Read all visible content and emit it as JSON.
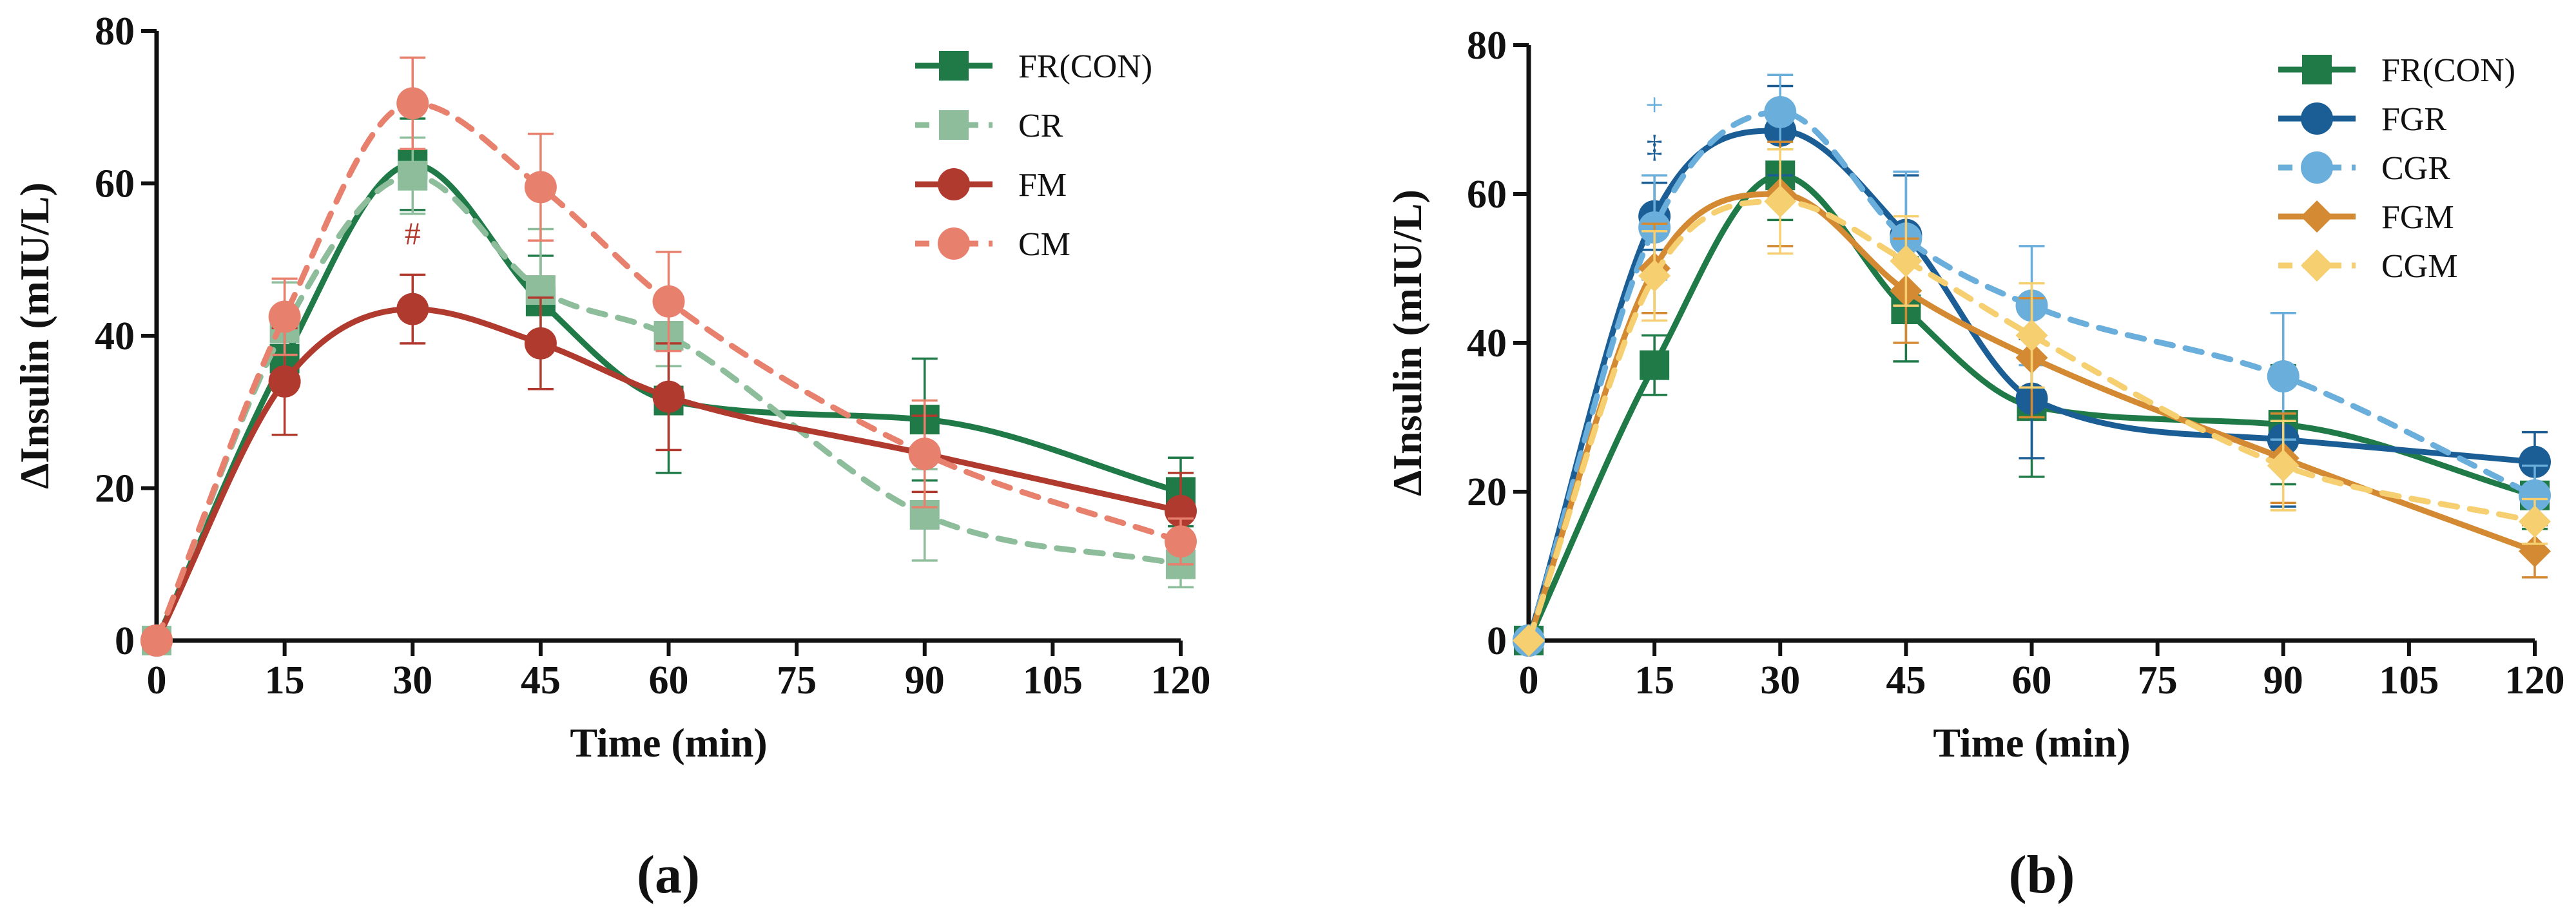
{
  "chart_data": [
    {
      "type": "line",
      "panel_label": "(a)",
      "xlabel": "Time (min)",
      "ylabel": "ΔInsulin (mIU/L)",
      "xlim": [
        0,
        120
      ],
      "ylim": [
        0,
        80
      ],
      "xticks": [
        0,
        15,
        30,
        45,
        60,
        75,
        90,
        105,
        120
      ],
      "yticks": [
        0,
        20,
        40,
        60,
        80
      ],
      "x": [
        0,
        15,
        30,
        45,
        60,
        90,
        120
      ],
      "legend_position": "top-right",
      "series": [
        {
          "name": "FR(CON)",
          "color": "#1f7a48",
          "marker": "square",
          "dash": false,
          "values": [
            0,
            37,
            62.5,
            44.5,
            31.5,
            29,
            19.5
          ],
          "errors": [
            0,
            4,
            6,
            6,
            9.5,
            8,
            4.5
          ]
        },
        {
          "name": "CR",
          "color": "#8ebd9b",
          "marker": "square",
          "dash": true,
          "values": [
            0,
            41,
            61,
            46,
            40,
            16.5,
            10
          ],
          "errors": [
            0,
            6,
            5,
            8,
            4,
            6,
            3
          ]
        },
        {
          "name": "FM",
          "color": "#b03a2e",
          "marker": "circle",
          "dash": false,
          "values": [
            0,
            34,
            43.5,
            39,
            32,
            24.5,
            17
          ],
          "errors": [
            0,
            7,
            4.5,
            6,
            7,
            5,
            5
          ]
        },
        {
          "name": "CM",
          "color": "#e8806e",
          "marker": "circle",
          "dash": true,
          "values": [
            0,
            42.5,
            70.5,
            59.5,
            44.5,
            24.5,
            13
          ],
          "errors": [
            0,
            5,
            6,
            7,
            6.5,
            7,
            3
          ]
        }
      ],
      "annotations": [
        {
          "text": "#",
          "x": 30,
          "y": 52,
          "color": "#b03a2e"
        }
      ]
    },
    {
      "type": "line",
      "panel_label": "(b)",
      "xlabel": "Time (min)",
      "ylabel": "ΔInsulin (mIU/L)",
      "xlim": [
        0,
        120
      ],
      "ylim": [
        0,
        80
      ],
      "xticks": [
        0,
        15,
        30,
        45,
        60,
        75,
        90,
        105,
        120
      ],
      "yticks": [
        0,
        20,
        40,
        60,
        80
      ],
      "x": [
        0,
        15,
        30,
        45,
        60,
        90,
        120
      ],
      "legend_position": "top-right",
      "series": [
        {
          "name": "FR(CON)",
          "color": "#1f7a48",
          "marker": "square",
          "dash": false,
          "values": [
            0,
            37,
            62.5,
            44.5,
            31.5,
            29,
            19.5
          ],
          "errors": [
            0,
            4,
            6,
            7,
            9.5,
            8,
            4.5
          ]
        },
        {
          "name": "FGR",
          "color": "#1b5e96",
          "marker": "circle",
          "dash": false,
          "values": [
            0,
            57,
            68.5,
            54.5,
            32.5,
            27,
            24
          ],
          "errors": [
            0,
            4.5,
            6,
            8,
            8,
            9,
            4
          ]
        },
        {
          "name": "CGR",
          "color": "#6aaedb",
          "marker": "circle",
          "dash": true,
          "values": [
            0,
            55.5,
            71,
            54,
            45,
            35.5,
            19.5
          ],
          "errors": [
            0,
            7,
            5,
            9,
            8,
            8.5,
            4
          ]
        },
        {
          "name": "FGM",
          "color": "#d48a33",
          "marker": "diamond",
          "dash": false,
          "values": [
            0,
            50,
            60,
            47,
            38,
            24.5,
            12
          ],
          "errors": [
            0,
            6,
            7,
            7,
            8,
            6,
            3.5
          ]
        },
        {
          "name": "CGM",
          "color": "#f5cf70",
          "marker": "diamond",
          "dash": true,
          "values": [
            0,
            49,
            59,
            51,
            41,
            23.5,
            16
          ],
          "errors": [
            0,
            6,
            7,
            6,
            7,
            6,
            3
          ]
        }
      ],
      "annotations": [
        {
          "text": "+",
          "x": 15,
          "y": 70.5,
          "color": "#6aaedb"
        },
        {
          "text": "‡",
          "x": 15,
          "y": 65,
          "color": "#1b5e96"
        }
      ]
    }
  ]
}
